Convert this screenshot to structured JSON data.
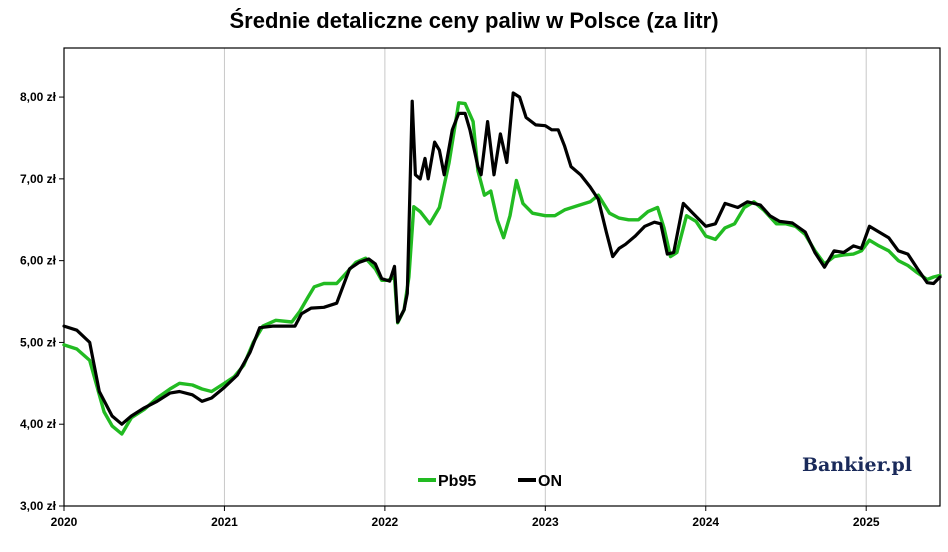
{
  "chart_data": {
    "type": "line",
    "title": "Średnie detaliczne ceny paliw w Polsce (za litr)",
    "watermark": "Bankier.pl",
    "ylim": [
      3.0,
      8.6
    ],
    "xlim": [
      2020.0,
      2025.46
    ],
    "y_ticks": [
      {
        "value": 3.0,
        "label": "3,00 zł"
      },
      {
        "value": 4.0,
        "label": "4,00 zł"
      },
      {
        "value": 5.0,
        "label": "5,00 zł"
      },
      {
        "value": 6.0,
        "label": "6,00 zł"
      },
      {
        "value": 7.0,
        "label": "7,00 zł"
      },
      {
        "value": 8.0,
        "label": "8,00 zł"
      }
    ],
    "x_ticks": [
      {
        "value": 2020,
        "label": "2020"
      },
      {
        "value": 2021,
        "label": "2021"
      },
      {
        "value": 2022,
        "label": "2022"
      },
      {
        "value": 2023,
        "label": "2023"
      },
      {
        "value": 2024,
        "label": "2024"
      },
      {
        "value": 2025,
        "label": "2025"
      }
    ],
    "grid": "vertical",
    "legend_position": "bottom-center",
    "series": [
      {
        "name": "Pb95",
        "color": "#22bb22",
        "points": [
          [
            2020.0,
            4.97
          ],
          [
            2020.08,
            4.92
          ],
          [
            2020.16,
            4.78
          ],
          [
            2020.25,
            4.15
          ],
          [
            2020.3,
            3.98
          ],
          [
            2020.36,
            3.88
          ],
          [
            2020.42,
            4.08
          ],
          [
            2020.5,
            4.18
          ],
          [
            2020.58,
            4.32
          ],
          [
            2020.66,
            4.43
          ],
          [
            2020.72,
            4.5
          ],
          [
            2020.8,
            4.48
          ],
          [
            2020.86,
            4.43
          ],
          [
            2020.92,
            4.4
          ],
          [
            2021.0,
            4.5
          ],
          [
            2021.06,
            4.58
          ],
          [
            2021.12,
            4.72
          ],
          [
            2021.18,
            5.0
          ],
          [
            2021.24,
            5.2
          ],
          [
            2021.32,
            5.27
          ],
          [
            2021.42,
            5.25
          ],
          [
            2021.47,
            5.38
          ],
          [
            2021.52,
            5.55
          ],
          [
            2021.56,
            5.68
          ],
          [
            2021.62,
            5.72
          ],
          [
            2021.7,
            5.72
          ],
          [
            2021.76,
            5.85
          ],
          [
            2021.82,
            5.98
          ],
          [
            2021.88,
            6.03
          ],
          [
            2021.94,
            5.9
          ],
          [
            2021.98,
            5.76
          ],
          [
            2022.02,
            5.76
          ],
          [
            2022.06,
            5.8
          ],
          [
            2022.08,
            5.24
          ],
          [
            2022.12,
            5.4
          ],
          [
            2022.15,
            5.8
          ],
          [
            2022.18,
            6.66
          ],
          [
            2022.22,
            6.6
          ],
          [
            2022.28,
            6.45
          ],
          [
            2022.34,
            6.65
          ],
          [
            2022.4,
            7.2
          ],
          [
            2022.46,
            7.93
          ],
          [
            2022.5,
            7.92
          ],
          [
            2022.55,
            7.7
          ],
          [
            2022.58,
            7.1
          ],
          [
            2022.62,
            6.8
          ],
          [
            2022.66,
            6.85
          ],
          [
            2022.7,
            6.5
          ],
          [
            2022.74,
            6.28
          ],
          [
            2022.78,
            6.55
          ],
          [
            2022.82,
            6.98
          ],
          [
            2022.86,
            6.7
          ],
          [
            2022.92,
            6.58
          ],
          [
            2023.0,
            6.55
          ],
          [
            2023.06,
            6.55
          ],
          [
            2023.12,
            6.62
          ],
          [
            2023.2,
            6.67
          ],
          [
            2023.28,
            6.72
          ],
          [
            2023.33,
            6.8
          ],
          [
            2023.4,
            6.58
          ],
          [
            2023.46,
            6.52
          ],
          [
            2023.52,
            6.5
          ],
          [
            2023.58,
            6.5
          ],
          [
            2023.64,
            6.6
          ],
          [
            2023.7,
            6.65
          ],
          [
            2023.74,
            6.4
          ],
          [
            2023.78,
            6.05
          ],
          [
            2023.82,
            6.1
          ],
          [
            2023.88,
            6.55
          ],
          [
            2023.94,
            6.48
          ],
          [
            2024.0,
            6.3
          ],
          [
            2024.06,
            6.26
          ],
          [
            2024.12,
            6.4
          ],
          [
            2024.18,
            6.45
          ],
          [
            2024.24,
            6.65
          ],
          [
            2024.3,
            6.72
          ],
          [
            2024.36,
            6.62
          ],
          [
            2024.44,
            6.45
          ],
          [
            2024.5,
            6.45
          ],
          [
            2024.56,
            6.42
          ],
          [
            2024.62,
            6.32
          ],
          [
            2024.68,
            6.12
          ],
          [
            2024.74,
            5.96
          ],
          [
            2024.8,
            6.05
          ],
          [
            2024.86,
            6.07
          ],
          [
            2024.92,
            6.08
          ],
          [
            2024.97,
            6.12
          ],
          [
            2025.02,
            6.25
          ],
          [
            2025.08,
            6.18
          ],
          [
            2025.14,
            6.12
          ],
          [
            2025.2,
            6.0
          ],
          [
            2025.26,
            5.94
          ],
          [
            2025.32,
            5.85
          ],
          [
            2025.38,
            5.77
          ],
          [
            2025.42,
            5.8
          ],
          [
            2025.46,
            5.82
          ]
        ]
      },
      {
        "name": "ON",
        "color": "#000000",
        "points": [
          [
            2020.0,
            5.2
          ],
          [
            2020.08,
            5.15
          ],
          [
            2020.16,
            5.0
          ],
          [
            2020.22,
            4.4
          ],
          [
            2020.3,
            4.1
          ],
          [
            2020.36,
            4.0
          ],
          [
            2020.42,
            4.1
          ],
          [
            2020.5,
            4.2
          ],
          [
            2020.58,
            4.28
          ],
          [
            2020.66,
            4.38
          ],
          [
            2020.72,
            4.4
          ],
          [
            2020.8,
            4.36
          ],
          [
            2020.86,
            4.28
          ],
          [
            2020.92,
            4.32
          ],
          [
            2021.0,
            4.45
          ],
          [
            2021.08,
            4.6
          ],
          [
            2021.16,
            4.88
          ],
          [
            2021.22,
            5.18
          ],
          [
            2021.3,
            5.2
          ],
          [
            2021.44,
            5.2
          ],
          [
            2021.48,
            5.35
          ],
          [
            2021.54,
            5.42
          ],
          [
            2021.62,
            5.43
          ],
          [
            2021.7,
            5.48
          ],
          [
            2021.78,
            5.9
          ],
          [
            2021.84,
            5.98
          ],
          [
            2021.9,
            6.02
          ],
          [
            2021.94,
            5.96
          ],
          [
            2021.98,
            5.78
          ],
          [
            2022.03,
            5.75
          ],
          [
            2022.06,
            5.93
          ],
          [
            2022.08,
            5.25
          ],
          [
            2022.12,
            5.4
          ],
          [
            2022.14,
            5.6
          ],
          [
            2022.17,
            7.95
          ],
          [
            2022.19,
            7.05
          ],
          [
            2022.22,
            7.0
          ],
          [
            2022.25,
            7.25
          ],
          [
            2022.27,
            7.0
          ],
          [
            2022.31,
            7.45
          ],
          [
            2022.34,
            7.35
          ],
          [
            2022.37,
            7.05
          ],
          [
            2022.42,
            7.6
          ],
          [
            2022.46,
            7.8
          ],
          [
            2022.5,
            7.8
          ],
          [
            2022.53,
            7.6
          ],
          [
            2022.58,
            7.15
          ],
          [
            2022.6,
            7.05
          ],
          [
            2022.64,
            7.7
          ],
          [
            2022.68,
            7.05
          ],
          [
            2022.72,
            7.55
          ],
          [
            2022.76,
            7.2
          ],
          [
            2022.8,
            8.05
          ],
          [
            2022.84,
            8.0
          ],
          [
            2022.88,
            7.75
          ],
          [
            2022.94,
            7.66
          ],
          [
            2023.0,
            7.65
          ],
          [
            2023.04,
            7.6
          ],
          [
            2023.08,
            7.6
          ],
          [
            2023.12,
            7.4
          ],
          [
            2023.16,
            7.15
          ],
          [
            2023.22,
            7.05
          ],
          [
            2023.28,
            6.9
          ],
          [
            2023.33,
            6.75
          ],
          [
            2023.38,
            6.35
          ],
          [
            2023.42,
            6.05
          ],
          [
            2023.46,
            6.15
          ],
          [
            2023.5,
            6.2
          ],
          [
            2023.56,
            6.3
          ],
          [
            2023.62,
            6.42
          ],
          [
            2023.68,
            6.47
          ],
          [
            2023.72,
            6.45
          ],
          [
            2023.76,
            6.08
          ],
          [
            2023.8,
            6.1
          ],
          [
            2023.86,
            6.7
          ],
          [
            2023.92,
            6.58
          ],
          [
            2024.0,
            6.42
          ],
          [
            2024.06,
            6.45
          ],
          [
            2024.12,
            6.7
          ],
          [
            2024.2,
            6.65
          ],
          [
            2024.26,
            6.72
          ],
          [
            2024.34,
            6.68
          ],
          [
            2024.4,
            6.55
          ],
          [
            2024.46,
            6.48
          ],
          [
            2024.54,
            6.46
          ],
          [
            2024.62,
            6.35
          ],
          [
            2024.68,
            6.1
          ],
          [
            2024.74,
            5.92
          ],
          [
            2024.8,
            6.12
          ],
          [
            2024.86,
            6.1
          ],
          [
            2024.92,
            6.18
          ],
          [
            2024.97,
            6.15
          ],
          [
            2025.02,
            6.42
          ],
          [
            2025.08,
            6.35
          ],
          [
            2025.14,
            6.28
          ],
          [
            2025.2,
            6.12
          ],
          [
            2025.26,
            6.08
          ],
          [
            2025.32,
            5.9
          ],
          [
            2025.38,
            5.73
          ],
          [
            2025.42,
            5.72
          ],
          [
            2025.46,
            5.8
          ]
        ]
      }
    ]
  }
}
